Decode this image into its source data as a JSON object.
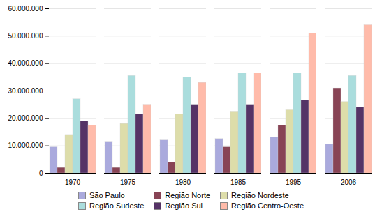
{
  "chart_data": {
    "type": "bar",
    "categories": [
      "1970",
      "1975",
      "1980",
      "1985",
      "1995",
      "2006"
    ],
    "series": [
      {
        "name": "São Paulo",
        "color": "#aaaadd",
        "values": [
          9500000,
          11500000,
          12000000,
          12500000,
          13000000,
          10500000
        ]
      },
      {
        "name": "Região Norte",
        "color": "#884455",
        "values": [
          2000000,
          2000000,
          4000000,
          9500000,
          17500000,
          31000000
        ]
      },
      {
        "name": "Região Nordeste",
        "color": "#ddddaa",
        "values": [
          14000000,
          18000000,
          21500000,
          22500000,
          23000000,
          26000000
        ]
      },
      {
        "name": "Região Sudeste",
        "color": "#aadddd",
        "values": [
          27000000,
          35500000,
          35000000,
          36500000,
          36500000,
          35500000
        ]
      },
      {
        "name": "Região Sul",
        "color": "#553366",
        "values": [
          19000000,
          21500000,
          25000000,
          25000000,
          26500000,
          24000000
        ]
      },
      {
        "name": "Região Centro-Oeste",
        "color": "#ffbbaa",
        "values": [
          17500000,
          25000000,
          33000000,
          36500000,
          51000000,
          54000000
        ]
      }
    ],
    "ylim": [
      0,
      60000000
    ],
    "yticks": [
      0,
      {
        "value": 10000000,
        "label": "10.000.000"
      },
      {
        "value": 20000000,
        "label": "20.000.000"
      },
      {
        "value": 30000000,
        "label": "30.000.000"
      },
      {
        "value": 40000000,
        "label": "40.000.000"
      },
      {
        "value": 50000000,
        "label": "50.000.000"
      },
      {
        "value": 60000000,
        "label": "60.000.000"
      }
    ],
    "grid": true,
    "legend": "bottom"
  }
}
